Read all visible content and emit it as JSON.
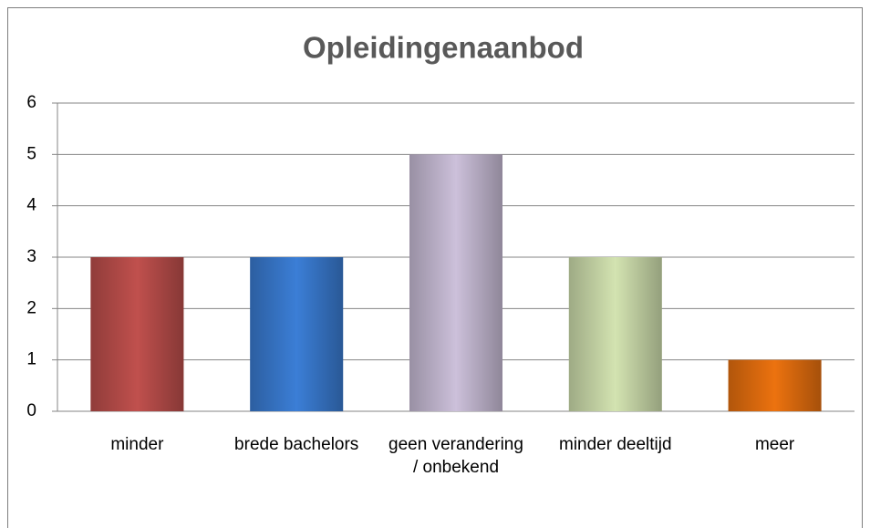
{
  "chart_data": {
    "type": "bar",
    "title": "Opleidingenaanbod",
    "categories": [
      "minder",
      "brede bachelors",
      "geen verandering / onbekend",
      "minder deeltijd",
      "meer"
    ],
    "values": [
      3,
      3,
      5,
      3,
      1
    ],
    "colors": [
      "#c0504d",
      "#3b7ed6",
      "#ccc0da",
      "#d3e3b1",
      "#ec720f"
    ],
    "ylim": [
      0,
      6
    ],
    "yticks": [
      0,
      1,
      2,
      3,
      4,
      5,
      6
    ],
    "grid": true
  }
}
